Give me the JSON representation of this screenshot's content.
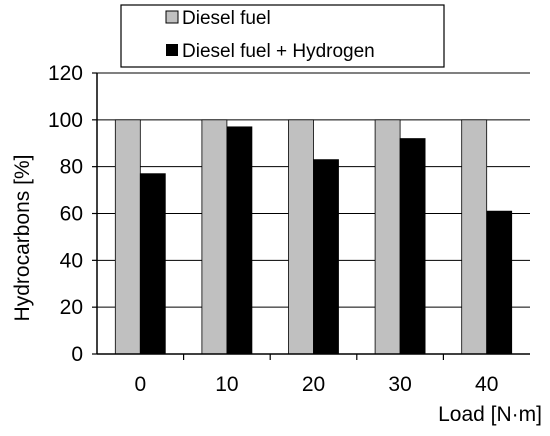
{
  "chart_data": {
    "type": "bar",
    "categories": [
      "0",
      "10",
      "20",
      "30",
      "40"
    ],
    "series": [
      {
        "name": "Diesel fuel",
        "values": [
          100,
          100,
          100,
          100,
          100
        ],
        "color": "#c0c0c0"
      },
      {
        "name": "Diesel fuel + Hydrogen",
        "values": [
          77,
          97,
          83,
          92,
          61
        ],
        "color": "#000000"
      }
    ],
    "title": "",
    "xlabel": "Load [N·m]",
    "ylabel": "Hydrocarbons  [%]",
    "ylim": [
      0,
      120
    ],
    "yticks": [
      "0",
      "20",
      "40",
      "60",
      "80",
      "100",
      "120"
    ],
    "grid": "horizontal",
    "legend_position": "top"
  }
}
